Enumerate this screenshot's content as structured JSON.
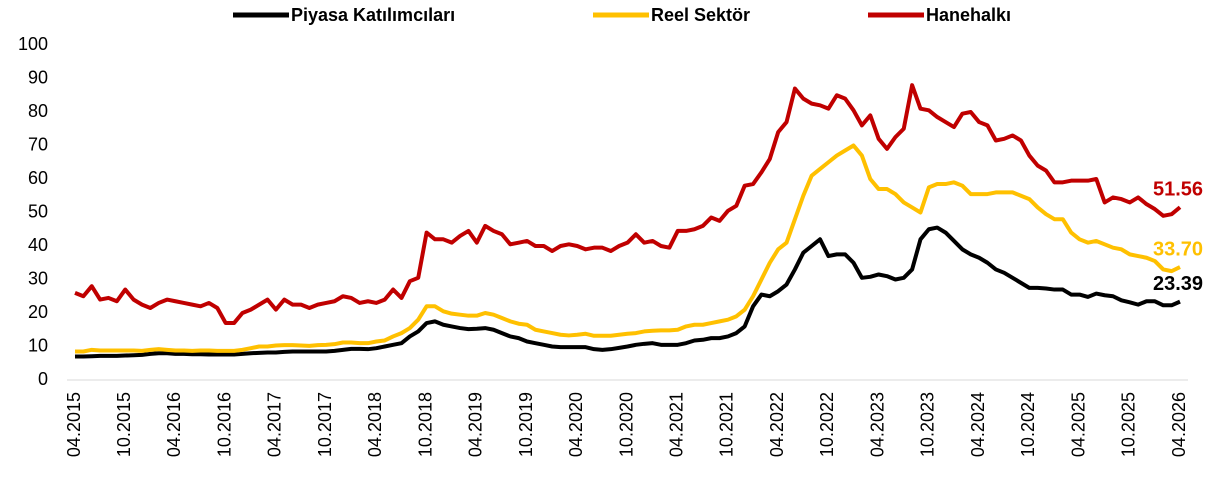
{
  "chart_data": {
    "type": "line",
    "categories": [
      "04.2015",
      null,
      null,
      null,
      null,
      null,
      "10.2015",
      null,
      null,
      null,
      null,
      null,
      "04.2016",
      null,
      null,
      null,
      null,
      null,
      "10.2016",
      null,
      null,
      null,
      null,
      null,
      "04.2017",
      null,
      null,
      null,
      null,
      null,
      "10.2017",
      null,
      null,
      null,
      null,
      null,
      "04.2018",
      null,
      null,
      null,
      null,
      null,
      "10.2018",
      null,
      null,
      null,
      null,
      null,
      "04.2019",
      null,
      null,
      null,
      null,
      null,
      "10.2019",
      null,
      null,
      null,
      null,
      null,
      "04.2020",
      null,
      null,
      null,
      null,
      null,
      "10.2020",
      null,
      null,
      null,
      null,
      null,
      "04.2021",
      null,
      null,
      null,
      null,
      null,
      "10.2021",
      null,
      null,
      null,
      null,
      null,
      "04.2022",
      null,
      null,
      null,
      null,
      null,
      "10.2022",
      null,
      null,
      null,
      null,
      null,
      "04.2023",
      null,
      null,
      null,
      null,
      null,
      "10.2023",
      null,
      null,
      null,
      null,
      null,
      "04.2024",
      null,
      null,
      null,
      null,
      null,
      "10.2024",
      null,
      null,
      null,
      null,
      null,
      "04.2025",
      null,
      null,
      null,
      null,
      null,
      "10.2025",
      null,
      null,
      null,
      null,
      null,
      "04.2026"
    ],
    "series": [
      {
        "name": "Piyasa Katılımcıları",
        "color": "#000000",
        "values": [
          7,
          7,
          7.1,
          7.2,
          7.2,
          7.2,
          7.3,
          7.4,
          7.5,
          7.8,
          8,
          8,
          7.8,
          7.8,
          7.7,
          7.7,
          7.6,
          7.6,
          7.6,
          7.6,
          7.8,
          8,
          8.1,
          8.2,
          8.2,
          8.4,
          8.5,
          8.5,
          8.5,
          8.5,
          8.5,
          8.7,
          9,
          9.3,
          9.3,
          9.2,
          9.5,
          10,
          10.5,
          11,
          13,
          14.5,
          17,
          17.5,
          16.5,
          16,
          15.5,
          15.2,
          15.3,
          15.5,
          15,
          14,
          13,
          12.5,
          11.5,
          11,
          10.5,
          10,
          9.8,
          9.8,
          9.8,
          9.8,
          9.2,
          9,
          9.2,
          9.6,
          10,
          10.5,
          10.8,
          11,
          10.5,
          10.5,
          10.5,
          11,
          11.8,
          12,
          12.5,
          12.5,
          13,
          14,
          16,
          22,
          25.5,
          25,
          26.5,
          28.5,
          33,
          38,
          40,
          42,
          37,
          37.5,
          37.5,
          35,
          30.5,
          30.8,
          31.5,
          31,
          30,
          30.5,
          33,
          42,
          45,
          45.5,
          44,
          41.5,
          39,
          37.5,
          36.5,
          35,
          33,
          32,
          30.5,
          29,
          27.5,
          27.5,
          27.3,
          27,
          27,
          25.5,
          25.5,
          24.8,
          25.8,
          25.3,
          25,
          23.8,
          23.2,
          22.5,
          23.5,
          23.5,
          22.3,
          22.3,
          23.39
        ],
        "value_labels": [
          null,
          null,
          null,
          null,
          null,
          null,
          null,
          null,
          null,
          null,
          null,
          null,
          null,
          null,
          null,
          null,
          null,
          null,
          null,
          null,
          null,
          null,
          null,
          null,
          null,
          null,
          null,
          null,
          null,
          null,
          null,
          null,
          null,
          null,
          null,
          null,
          null,
          null,
          null,
          null,
          null,
          null,
          null,
          null,
          null,
          null,
          null,
          null,
          null,
          null,
          null,
          null,
          null,
          null,
          null,
          null,
          null,
          null,
          null,
          null,
          null,
          null,
          null,
          null,
          null,
          null,
          null,
          null,
          null,
          null,
          null,
          null,
          null,
          null,
          null,
          null,
          null,
          null,
          null,
          null,
          null,
          null,
          null,
          null,
          null,
          null,
          null,
          null,
          null,
          null,
          null,
          null,
          null,
          null,
          null,
          null,
          null,
          null,
          null,
          null,
          null,
          null,
          null,
          null,
          null,
          null,
          null,
          null,
          null,
          null,
          null,
          null,
          null,
          null,
          null,
          null,
          null,
          null,
          null,
          null,
          null,
          null,
          null,
          null,
          null,
          null,
          null,
          null,
          null,
          null,
          null,
          null,
          "23.39"
        ]
      },
      {
        "name": "Reel Sektör",
        "color": "#ffc000",
        "values": [
          8.5,
          8.5,
          9,
          8.8,
          8.8,
          8.8,
          8.8,
          8.8,
          8.7,
          9,
          9.2,
          9,
          8.8,
          8.8,
          8.7,
          8.8,
          8.8,
          8.7,
          8.7,
          8.7,
          9,
          9.5,
          10,
          10,
          10.3,
          10.4,
          10.4,
          10.3,
          10.2,
          10.4,
          10.5,
          10.7,
          11.2,
          11.2,
          11,
          11,
          11.5,
          11.8,
          13,
          14,
          15.5,
          18,
          22,
          22,
          20.5,
          19.8,
          19.5,
          19.2,
          19.2,
          20,
          19.5,
          18.5,
          17.5,
          16.8,
          16.5,
          15,
          14.5,
          14,
          13.5,
          13.3,
          13.5,
          13.8,
          13.2,
          13.2,
          13.2,
          13.5,
          13.8,
          14,
          14.5,
          14.7,
          14.8,
          14.8,
          15,
          16,
          16.5,
          16.5,
          17,
          17.5,
          18,
          19,
          21,
          25,
          30,
          35,
          39,
          41,
          48,
          55,
          61,
          63,
          65,
          67,
          68.5,
          70,
          67,
          60,
          57,
          57,
          55.5,
          53,
          51.5,
          50,
          57.5,
          58.5,
          58.5,
          59,
          58,
          55.5,
          55.5,
          55.5,
          56,
          56,
          56,
          55,
          54,
          51.5,
          49.5,
          48,
          48,
          44,
          42,
          41,
          41.5,
          40.5,
          39.5,
          39,
          37.5,
          37,
          36.5,
          35.5,
          33,
          32.5,
          33.7
        ],
        "value_labels": [
          null,
          null,
          null,
          null,
          null,
          null,
          null,
          null,
          null,
          null,
          null,
          null,
          null,
          null,
          null,
          null,
          null,
          null,
          null,
          null,
          null,
          null,
          null,
          null,
          null,
          null,
          null,
          null,
          null,
          null,
          null,
          null,
          null,
          null,
          null,
          null,
          null,
          null,
          null,
          null,
          null,
          null,
          null,
          null,
          null,
          null,
          null,
          null,
          null,
          null,
          null,
          null,
          null,
          null,
          null,
          null,
          null,
          null,
          null,
          null,
          null,
          null,
          null,
          null,
          null,
          null,
          null,
          null,
          null,
          null,
          null,
          null,
          null,
          null,
          null,
          null,
          null,
          null,
          null,
          null,
          null,
          null,
          null,
          null,
          null,
          null,
          null,
          null,
          null,
          null,
          null,
          null,
          null,
          null,
          null,
          null,
          null,
          null,
          null,
          null,
          null,
          null,
          null,
          null,
          null,
          null,
          null,
          null,
          null,
          null,
          null,
          null,
          null,
          null,
          null,
          null,
          null,
          null,
          null,
          null,
          null,
          null,
          null,
          null,
          null,
          null,
          null,
          null,
          null,
          null,
          null,
          null,
          "33.70"
        ]
      },
      {
        "name": "Hanehalkı",
        "color": "#c00000",
        "values": [
          26,
          25,
          28,
          24,
          24.5,
          23.5,
          27,
          24,
          22.5,
          21.5,
          23,
          24,
          23.5,
          23,
          22.5,
          22,
          23,
          21.5,
          17,
          17,
          20,
          21,
          22.5,
          24,
          21,
          24,
          22.5,
          22.5,
          21.5,
          22.5,
          23,
          23.5,
          25,
          24.5,
          23,
          23.5,
          23,
          24,
          27,
          24.5,
          29.5,
          30.5,
          44,
          42,
          42,
          41,
          43,
          44.5,
          41,
          46,
          44.5,
          43.5,
          40.5,
          41,
          41.5,
          40,
          40,
          38.5,
          40,
          40.5,
          40,
          39,
          39.5,
          39.5,
          38.5,
          40,
          41,
          43.5,
          41,
          41.5,
          40,
          39.5,
          44.5,
          44.5,
          45,
          46,
          48.5,
          47.5,
          50.5,
          52,
          58,
          58.5,
          62,
          66,
          74,
          77,
          87,
          84,
          82.5,
          82,
          81,
          85,
          84,
          80.5,
          76,
          79,
          72,
          69,
          72.5,
          75,
          88,
          81,
          80.5,
          78.5,
          77,
          75.5,
          79.5,
          80,
          77,
          76,
          71.5,
          72,
          73,
          71.5,
          67,
          64,
          62.5,
          59,
          59,
          59.5,
          59.5,
          59.5,
          60,
          53,
          54.5,
          54,
          53,
          54.5,
          52.5,
          51,
          49,
          49.5,
          51.56
        ],
        "value_labels": [
          null,
          null,
          null,
          null,
          null,
          null,
          null,
          null,
          null,
          null,
          null,
          null,
          null,
          null,
          null,
          null,
          null,
          null,
          null,
          null,
          null,
          null,
          null,
          null,
          null,
          null,
          null,
          null,
          null,
          null,
          null,
          null,
          null,
          null,
          null,
          null,
          null,
          null,
          null,
          null,
          null,
          null,
          null,
          null,
          null,
          null,
          null,
          null,
          null,
          null,
          null,
          null,
          null,
          null,
          null,
          null,
          null,
          null,
          null,
          null,
          null,
          null,
          null,
          null,
          null,
          null,
          null,
          null,
          null,
          null,
          null,
          null,
          null,
          null,
          null,
          null,
          null,
          null,
          null,
          null,
          null,
          null,
          null,
          null,
          null,
          null,
          null,
          null,
          null,
          null,
          null,
          null,
          null,
          null,
          null,
          null,
          null,
          null,
          null,
          null,
          null,
          null,
          null,
          null,
          null,
          null,
          null,
          null,
          null,
          null,
          null,
          null,
          null,
          null,
          null,
          null,
          null,
          null,
          null,
          null,
          null,
          null,
          null,
          null,
          null,
          null,
          null,
          null,
          null,
          null,
          null,
          null,
          "51.56"
        ]
      }
    ],
    "ylim": [
      0,
      100
    ],
    "yticks": [
      0,
      10,
      20,
      30,
      40,
      50,
      60,
      70,
      80,
      90,
      100
    ],
    "grid": false,
    "legend": "top"
  }
}
